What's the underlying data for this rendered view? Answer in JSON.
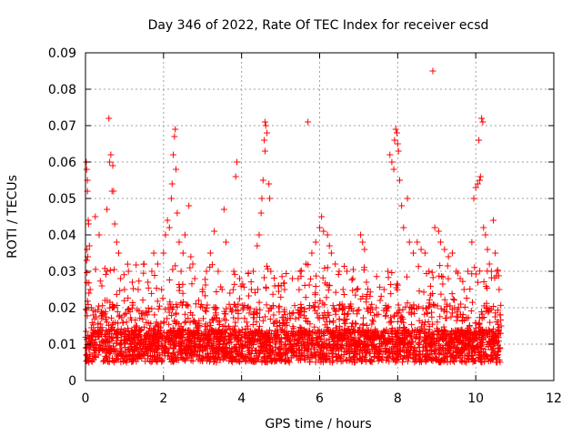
{
  "chart_data": {
    "type": "scatter",
    "title": "Day 346 of 2022, Rate Of TEC Index for receiver ecsd",
    "xlabel": "GPS time / hours",
    "ylabel": "ROTI / TECUs",
    "xlim": [
      0,
      12
    ],
    "ylim": [
      0,
      0.09
    ],
    "xticks": [
      "0",
      "2",
      "4",
      "6",
      "8",
      "10",
      "12"
    ],
    "yticks": [
      "0",
      "0.01",
      "0.02",
      "0.03",
      "0.04",
      "0.05",
      "0.06",
      "0.07",
      "0.08",
      "0.09"
    ],
    "grid": true,
    "marker": "+",
    "color": "#ff0000",
    "series": [
      {
        "points": [
          [
            0.02,
            0.06
          ],
          [
            0.03,
            0.058
          ],
          [
            0.05,
            0.055
          ],
          [
            0.05,
            0.052
          ],
          [
            0.07,
            0.044
          ],
          [
            0.08,
            0.043
          ],
          [
            0.04,
            0.036
          ],
          [
            0.06,
            0.034
          ],
          [
            0.03,
            0.033
          ],
          [
            0.1,
            0.037
          ],
          [
            0.12,
            0.025
          ],
          [
            0.15,
            0.02
          ],
          [
            0.2,
            0.018
          ],
          [
            0.25,
            0.045
          ],
          [
            0.35,
            0.04
          ],
          [
            0.42,
            0.026
          ],
          [
            0.5,
            0.022
          ],
          [
            0.55,
            0.047
          ],
          [
            0.6,
            0.072
          ],
          [
            0.62,
            0.06
          ],
          [
            0.65,
            0.062
          ],
          [
            0.7,
            0.059
          ],
          [
            0.68,
            0.052
          ],
          [
            0.72,
            0.052
          ],
          [
            0.75,
            0.043
          ],
          [
            0.8,
            0.038
          ],
          [
            0.85,
            0.035
          ],
          [
            0.9,
            0.028
          ],
          [
            1.0,
            0.025
          ],
          [
            1.1,
            0.03
          ],
          [
            1.2,
            0.027
          ],
          [
            1.35,
            0.025
          ],
          [
            1.5,
            0.032
          ],
          [
            1.6,
            0.027
          ],
          [
            1.7,
            0.03
          ],
          [
            1.75,
            0.035
          ],
          [
            1.85,
            0.032
          ],
          [
            1.95,
            0.025
          ],
          [
            2.0,
            0.035
          ],
          [
            2.05,
            0.04
          ],
          [
            2.1,
            0.044
          ],
          [
            2.15,
            0.042
          ],
          [
            2.2,
            0.05
          ],
          [
            2.22,
            0.054
          ],
          [
            2.25,
            0.062
          ],
          [
            2.28,
            0.067
          ],
          [
            2.3,
            0.069
          ],
          [
            2.32,
            0.058
          ],
          [
            2.35,
            0.046
          ],
          [
            2.4,
            0.038
          ],
          [
            2.45,
            0.03
          ],
          [
            2.5,
            0.035
          ],
          [
            2.55,
            0.04
          ],
          [
            2.65,
            0.048
          ],
          [
            2.7,
            0.034
          ],
          [
            2.75,
            0.032
          ],
          [
            2.8,
            0.028
          ],
          [
            2.9,
            0.022
          ],
          [
            3.0,
            0.025
          ],
          [
            3.1,
            0.03
          ],
          [
            3.2,
            0.035
          ],
          [
            3.3,
            0.041
          ],
          [
            3.4,
            0.03
          ],
          [
            3.5,
            0.025
          ],
          [
            3.55,
            0.047
          ],
          [
            3.6,
            0.038
          ],
          [
            3.7,
            0.024
          ],
          [
            3.8,
            0.03
          ],
          [
            3.85,
            0.056
          ],
          [
            3.88,
            0.06
          ],
          [
            3.95,
            0.028
          ],
          [
            4.05,
            0.02
          ],
          [
            4.15,
            0.02
          ],
          [
            4.25,
            0.025
          ],
          [
            4.3,
            0.03
          ],
          [
            4.4,
            0.037
          ],
          [
            4.45,
            0.04
          ],
          [
            4.5,
            0.046
          ],
          [
            4.52,
            0.05
          ],
          [
            4.55,
            0.055
          ],
          [
            4.58,
            0.066
          ],
          [
            4.6,
            0.071
          ],
          [
            4.62,
            0.07
          ],
          [
            4.65,
            0.068
          ],
          [
            4.6,
            0.063
          ],
          [
            4.7,
            0.054
          ],
          [
            4.72,
            0.05
          ],
          [
            4.75,
            0.03
          ],
          [
            4.85,
            0.026
          ],
          [
            4.95,
            0.02
          ],
          [
            5.1,
            0.025
          ],
          [
            5.3,
            0.028
          ],
          [
            5.45,
            0.028
          ],
          [
            5.5,
            0.03
          ],
          [
            5.65,
            0.032
          ],
          [
            5.7,
            0.071
          ],
          [
            5.8,
            0.035
          ],
          [
            5.9,
            0.038
          ],
          [
            6.0,
            0.042
          ],
          [
            6.05,
            0.045
          ],
          [
            6.1,
            0.041
          ],
          [
            6.2,
            0.04
          ],
          [
            6.25,
            0.037
          ],
          [
            6.3,
            0.035
          ],
          [
            6.4,
            0.032
          ],
          [
            6.5,
            0.03
          ],
          [
            6.6,
            0.025
          ],
          [
            6.7,
            0.03
          ],
          [
            6.85,
            0.028
          ],
          [
            6.95,
            0.025
          ],
          [
            7.05,
            0.04
          ],
          [
            7.1,
            0.038
          ],
          [
            7.15,
            0.036
          ],
          [
            7.2,
            0.027
          ],
          [
            7.3,
            0.02
          ],
          [
            7.45,
            0.02
          ],
          [
            7.55,
            0.022
          ],
          [
            7.65,
            0.025
          ],
          [
            7.75,
            0.03
          ],
          [
            7.8,
            0.062
          ],
          [
            7.85,
            0.06
          ],
          [
            7.9,
            0.058
          ],
          [
            7.92,
            0.066
          ],
          [
            7.95,
            0.069
          ],
          [
            7.98,
            0.068
          ],
          [
            8.0,
            0.065
          ],
          [
            8.02,
            0.063
          ],
          [
            8.05,
            0.055
          ],
          [
            8.1,
            0.048
          ],
          [
            8.15,
            0.042
          ],
          [
            8.25,
            0.05
          ],
          [
            8.3,
            0.038
          ],
          [
            8.4,
            0.035
          ],
          [
            8.5,
            0.038
          ],
          [
            8.6,
            0.036
          ],
          [
            8.7,
            0.035
          ],
          [
            8.8,
            0.03
          ],
          [
            8.9,
            0.085
          ],
          [
            8.95,
            0.042
          ],
          [
            9.05,
            0.041
          ],
          [
            9.1,
            0.038
          ],
          [
            9.2,
            0.036
          ],
          [
            9.3,
            0.034
          ],
          [
            9.4,
            0.035
          ],
          [
            9.5,
            0.03
          ],
          [
            9.6,
            0.028
          ],
          [
            9.7,
            0.025
          ],
          [
            9.8,
            0.03
          ],
          [
            9.9,
            0.038
          ],
          [
            9.95,
            0.05
          ],
          [
            10.0,
            0.053
          ],
          [
            10.05,
            0.054
          ],
          [
            10.1,
            0.055
          ],
          [
            10.12,
            0.056
          ],
          [
            10.08,
            0.066
          ],
          [
            10.15,
            0.072
          ],
          [
            10.18,
            0.071
          ],
          [
            10.2,
            0.042
          ],
          [
            10.25,
            0.04
          ],
          [
            10.3,
            0.036
          ],
          [
            10.35,
            0.032
          ],
          [
            10.4,
            0.03
          ],
          [
            10.45,
            0.044
          ],
          [
            10.5,
            0.035
          ],
          [
            10.55,
            0.03
          ],
          [
            10.6,
            0.025
          ],
          [
            10.63,
            0.018
          ],
          [
            10.65,
            0.015
          ],
          [
            1.3,
            0.015
          ],
          [
            5.2,
            0.012
          ]
        ]
      }
    ]
  }
}
